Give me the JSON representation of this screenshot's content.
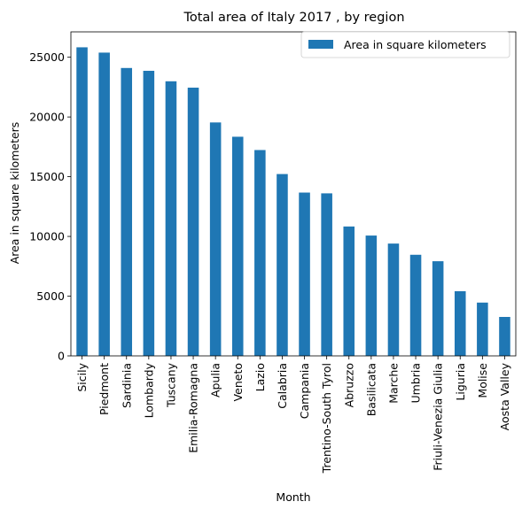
{
  "chart_data": {
    "type": "bar",
    "title": "Total area of Italy 2017 , by region",
    "xlabel": "Month",
    "ylabel": "Area in square kilometers",
    "categories": [
      "Sicily",
      "Piedmont",
      "Sardinia",
      "Lombardy",
      "Tuscany",
      "Emilia-Romagna",
      "Apulia",
      "Veneto",
      "Lazio",
      "Calabria",
      "Campania",
      "Trentino-South Tyrol",
      "Abruzzo",
      "Basilicata",
      "Marche",
      "Umbria",
      "Friuli-Venezia Giulia",
      "Liguria",
      "Molise",
      "Aosta Valley"
    ],
    "series": [
      {
        "name": "Area in square kilometers",
        "color": "#1f77b4",
        "values": [
          25832,
          25387,
          24100,
          23864,
          22987,
          22453,
          19541,
          18345,
          17232,
          15222,
          13671,
          13606,
          10832,
          10073,
          9401,
          8464,
          7924,
          5416,
          4461,
          3261
        ]
      }
    ],
    "ylim": [
      0,
      27123.6
    ],
    "yticks": [
      0,
      5000,
      10000,
      15000,
      20000,
      25000
    ],
    "grid": false,
    "legend_position": "top-right"
  }
}
